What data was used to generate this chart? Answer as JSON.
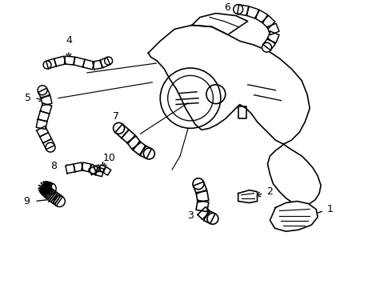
{
  "bg_color": "#ffffff",
  "line_color": "#000000",
  "line_width": 1.2,
  "fig_width": 4.9,
  "fig_height": 3.6,
  "dpi": 100
}
